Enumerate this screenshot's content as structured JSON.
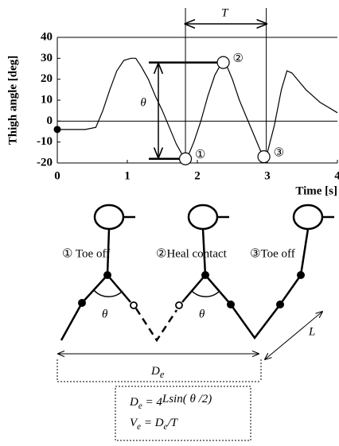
{
  "chart_data": {
    "type": "line",
    "x_label": "Time [s]",
    "y_label": "Thigh angle [deg]",
    "x": [
      0,
      0.2,
      0.4,
      0.55,
      0.65,
      0.75,
      0.85,
      0.95,
      1.05,
      1.12,
      1.2,
      1.3,
      1.4,
      1.5,
      1.6,
      1.7,
      1.8,
      1.85,
      1.95,
      2.05,
      2.15,
      2.25,
      2.35,
      2.4,
      2.5,
      2.6,
      2.7,
      2.8,
      2.9,
      2.95,
      3.0,
      3.1,
      3.2,
      3.28,
      3.35,
      3.45,
      3.55,
      3.65,
      3.75,
      3.85,
      4.0
    ],
    "values": [
      -4,
      -4,
      -4,
      -3,
      5,
      15,
      24,
      29,
      30,
      30,
      26,
      20,
      12,
      5,
      -3,
      -11,
      -17,
      -18,
      -10,
      0,
      12,
      22,
      28,
      28,
      20,
      10,
      2,
      -6,
      -14,
      -17,
      -15,
      -2,
      15,
      24,
      23,
      19,
      15,
      12,
      9,
      7,
      4
    ],
    "color": "#000000",
    "xlim": [
      0,
      4
    ],
    "xticks": [
      0,
      1,
      2,
      3,
      4
    ],
    "ylim": [
      -20,
      40
    ],
    "yticks": [
      -20,
      -10,
      0,
      10,
      20,
      30,
      40
    ],
    "grid": false,
    "points": [
      {
        "label": "①",
        "x": 1.83,
        "y": -18
      },
      {
        "label": "②",
        "x": 2.37,
        "y": 28
      },
      {
        "label": "③",
        "x": 2.95,
        "y": -17
      }
    ],
    "period_label": "T",
    "angle_label": "θ"
  },
  "diagram": {
    "labels": [
      "① Toe off",
      "②Heal contact",
      "③Toe off"
    ],
    "theta": "θ",
    "length": "L",
    "distance": [
      "D",
      "e"
    ],
    "formula": [
      [
        "D",
        "e",
        " = 4",
        "",
        "Lsin( θ /2)"
      ],
      [
        "V",
        "e",
        " = D",
        "e",
        "/T"
      ]
    ]
  }
}
